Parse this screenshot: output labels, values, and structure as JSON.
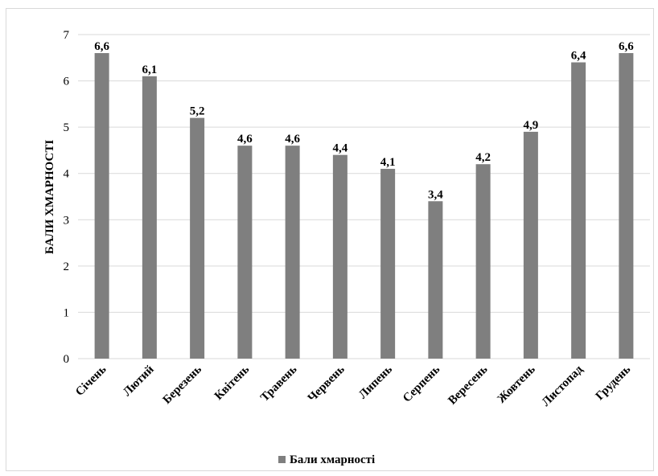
{
  "chart_data": {
    "type": "bar",
    "categories": [
      "Січень",
      "Лютий",
      "Березень",
      "Квітень",
      "Травень",
      "Червень",
      "Липень",
      "Серпень",
      "Вересень",
      "Жовтень",
      "Листопад",
      "Грудень"
    ],
    "series": [
      {
        "name": "Бали хмарності",
        "values": [
          6.6,
          6.1,
          5.2,
          4.6,
          4.6,
          4.4,
          4.1,
          3.4,
          4.2,
          4.9,
          6.4,
          6.6
        ]
      }
    ],
    "data_labels": [
      "6,6",
      "6,1",
      "5,2",
      "4,6",
      "4,6",
      "4,4",
      "4,1",
      "3,4",
      "4,2",
      "4,9",
      "6,4",
      "6,6"
    ],
    "ylabel": "БАЛИ ХМАРНОСТІ",
    "xlabel": "",
    "ylim": [
      0,
      7
    ],
    "yticks": [
      0,
      1,
      2,
      3,
      4,
      5,
      6,
      7
    ],
    "grid": true,
    "legend_position": "bottom",
    "bar_color": "#7f7f7f",
    "grid_color": "#d9d9d9"
  }
}
